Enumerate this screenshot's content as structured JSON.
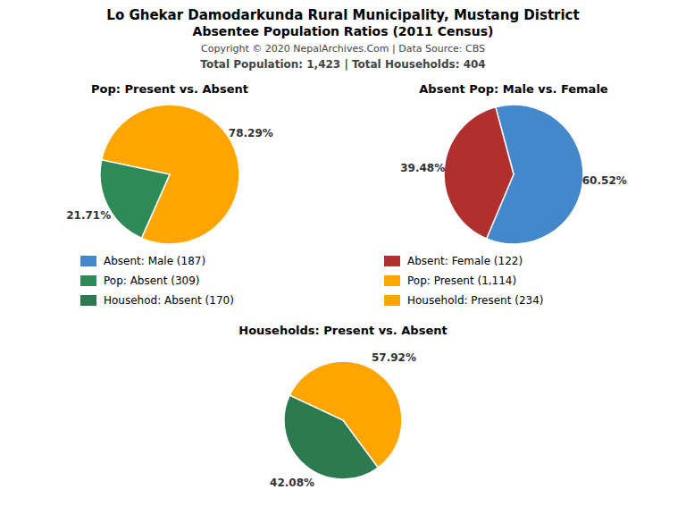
{
  "title": "Lo Ghekar Damodarkunda Rural Municipality, Mustang District",
  "subtitle": "Absentee Population Ratios (2011 Census)",
  "annotations": [
    "Copyright © 2020 NepalArchives.Com | Data Source: CBS",
    "Total Population: 1,423 | Total Households: 404"
  ],
  "chart_data": [
    {
      "type": "pie",
      "title": "Pop: Present vs. Absent",
      "categories": [
        "Pop: Present (1,114)",
        "Pop: Absent (309)"
      ],
      "values": [
        78.29,
        21.71
      ],
      "value_labels": [
        "78.29%",
        "21.71%"
      ],
      "colors": [
        "#FFA500",
        "#2E8B57"
      ]
    },
    {
      "type": "pie",
      "title": "Absent Pop: Male vs. Female",
      "categories": [
        "Absent: Male (187)",
        "Absent: Female (122)"
      ],
      "values": [
        60.52,
        39.48
      ],
      "value_labels": [
        "60.52%",
        "39.48%"
      ],
      "colors": [
        "#4488CC",
        "#B03030"
      ]
    },
    {
      "type": "pie",
      "title": "Households: Present vs. Absent",
      "categories": [
        "Household: Present (234)",
        "Househod: Absent (170)"
      ],
      "values": [
        57.92,
        42.08
      ],
      "value_labels": [
        "57.92%",
        "42.08%"
      ],
      "colors": [
        "#FFA500",
        "#2E7A50"
      ]
    }
  ]
}
